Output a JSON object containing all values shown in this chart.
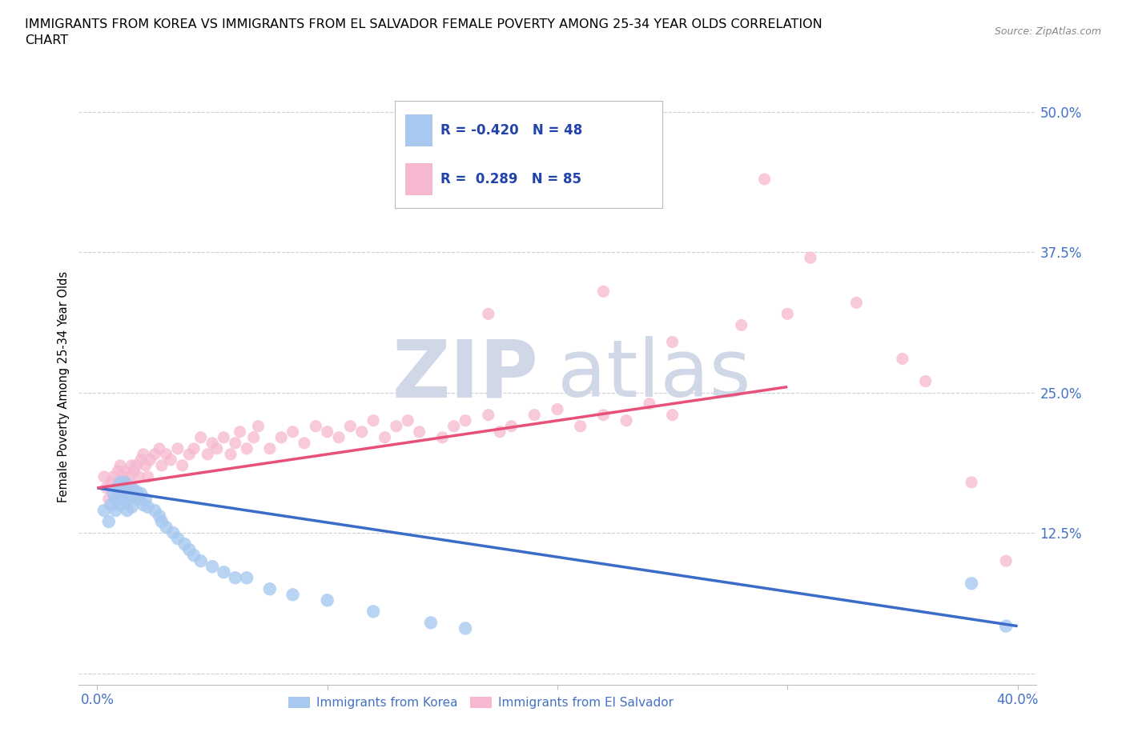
{
  "title": "IMMIGRANTS FROM KOREA VS IMMIGRANTS FROM EL SALVADOR FEMALE POVERTY AMONG 25-34 YEAR OLDS CORRELATION\nCHART",
  "source_text": "Source: ZipAtlas.com",
  "ylabel": "Female Poverty Among 25-34 Year Olds",
  "xlim": [
    0.0,
    0.4
  ],
  "ylim": [
    0.0,
    0.5
  ],
  "ytick_vals": [
    0.0,
    0.125,
    0.25,
    0.375,
    0.5
  ],
  "ytick_labels": [
    "",
    "12.5%",
    "25.0%",
    "37.5%",
    "50.0%"
  ],
  "xtick_vals": [
    0.0,
    0.1,
    0.2,
    0.3,
    0.4
  ],
  "xtick_labels": [
    "0.0%",
    "",
    "",
    "",
    "40.0%"
  ],
  "korea_R": -0.42,
  "korea_N": 48,
  "salvador_R": 0.289,
  "salvador_N": 85,
  "korea_color": "#a8c8f0",
  "salvador_color": "#f5b8d0",
  "korea_line_color": "#3a6cc8",
  "salvador_line_color": "#e8507a",
  "korea_dash_color": "#c0b8b0",
  "grid_color": "#c8ccd8",
  "background_color": "#ffffff",
  "watermark_color": "#d0d8e8",
  "title_fontsize": 11.5,
  "tick_label_color": "#4472c4",
  "tick_label_fontsize": 12,
  "korea_scatter_x": [
    0.003,
    0.005,
    0.006,
    0.007,
    0.008,
    0.008,
    0.009,
    0.009,
    0.01,
    0.01,
    0.01,
    0.011,
    0.012,
    0.012,
    0.013,
    0.013,
    0.014,
    0.015,
    0.015,
    0.016,
    0.017,
    0.018,
    0.019,
    0.02,
    0.021,
    0.022,
    0.025,
    0.027,
    0.028,
    0.03,
    0.033,
    0.035,
    0.038,
    0.04,
    0.042,
    0.045,
    0.05,
    0.055,
    0.06,
    0.065,
    0.075,
    0.085,
    0.1,
    0.12,
    0.145,
    0.16,
    0.38,
    0.395
  ],
  "korea_scatter_y": [
    0.145,
    0.135,
    0.15,
    0.16,
    0.155,
    0.145,
    0.165,
    0.155,
    0.17,
    0.16,
    0.15,
    0.165,
    0.17,
    0.155,
    0.16,
    0.145,
    0.155,
    0.165,
    0.148,
    0.158,
    0.162,
    0.155,
    0.16,
    0.15,
    0.155,
    0.148,
    0.145,
    0.14,
    0.135,
    0.13,
    0.125,
    0.12,
    0.115,
    0.11,
    0.105,
    0.1,
    0.095,
    0.09,
    0.085,
    0.085,
    0.075,
    0.07,
    0.065,
    0.055,
    0.045,
    0.04,
    0.08,
    0.042
  ],
  "salvador_scatter_x": [
    0.003,
    0.004,
    0.005,
    0.006,
    0.007,
    0.008,
    0.008,
    0.009,
    0.009,
    0.01,
    0.01,
    0.011,
    0.012,
    0.012,
    0.013,
    0.014,
    0.015,
    0.015,
    0.016,
    0.017,
    0.018,
    0.019,
    0.02,
    0.021,
    0.022,
    0.023,
    0.025,
    0.027,
    0.028,
    0.03,
    0.032,
    0.035,
    0.037,
    0.04,
    0.042,
    0.045,
    0.048,
    0.05,
    0.052,
    0.055,
    0.058,
    0.06,
    0.062,
    0.065,
    0.068,
    0.07,
    0.075,
    0.08,
    0.085,
    0.09,
    0.095,
    0.1,
    0.105,
    0.11,
    0.115,
    0.12,
    0.125,
    0.13,
    0.135,
    0.14,
    0.15,
    0.155,
    0.16,
    0.17,
    0.175,
    0.18,
    0.19,
    0.2,
    0.21,
    0.22,
    0.23,
    0.24,
    0.25,
    0.17,
    0.22,
    0.25,
    0.28,
    0.29,
    0.3,
    0.31,
    0.33,
    0.35,
    0.36,
    0.38,
    0.395
  ],
  "salvador_scatter_y": [
    0.175,
    0.165,
    0.155,
    0.17,
    0.175,
    0.165,
    0.155,
    0.18,
    0.16,
    0.185,
    0.165,
    0.175,
    0.18,
    0.16,
    0.17,
    0.175,
    0.185,
    0.165,
    0.18,
    0.185,
    0.175,
    0.19,
    0.195,
    0.185,
    0.175,
    0.19,
    0.195,
    0.2,
    0.185,
    0.195,
    0.19,
    0.2,
    0.185,
    0.195,
    0.2,
    0.21,
    0.195,
    0.205,
    0.2,
    0.21,
    0.195,
    0.205,
    0.215,
    0.2,
    0.21,
    0.22,
    0.2,
    0.21,
    0.215,
    0.205,
    0.22,
    0.215,
    0.21,
    0.22,
    0.215,
    0.225,
    0.21,
    0.22,
    0.225,
    0.215,
    0.21,
    0.22,
    0.225,
    0.23,
    0.215,
    0.22,
    0.23,
    0.235,
    0.22,
    0.23,
    0.225,
    0.24,
    0.23,
    0.32,
    0.34,
    0.295,
    0.31,
    0.44,
    0.32,
    0.37,
    0.33,
    0.28,
    0.26,
    0.17,
    0.1
  ]
}
